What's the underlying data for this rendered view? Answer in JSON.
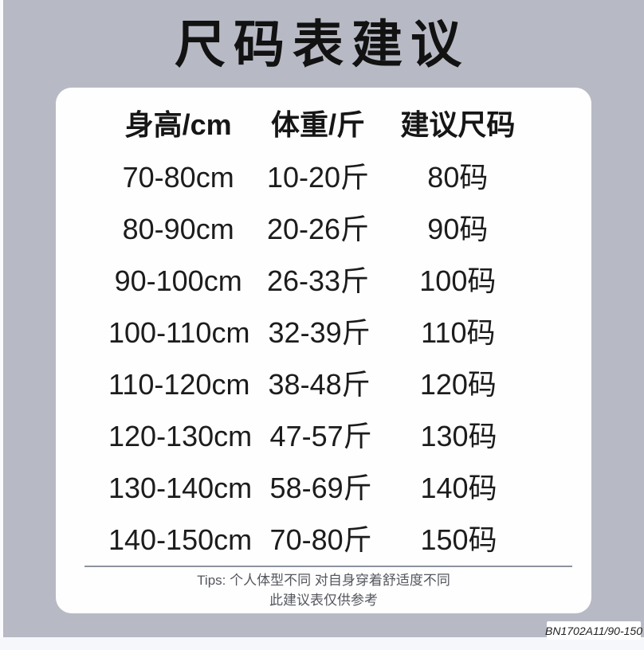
{
  "colors": {
    "background_gray": "#b7bac4",
    "card_white": "#fefefe",
    "page_edge_light": "#f6f7fb",
    "title_text": "#121212",
    "body_text": "#1c1c1c",
    "tips_text": "#54575d",
    "divider": "#8e939d",
    "badge_text": "#222222"
  },
  "chart_data": {
    "type": "table",
    "title": "尺码表建议",
    "columns": [
      "身高/cm",
      "体重/斤",
      "建议尺码"
    ],
    "rows": [
      [
        "70-80cm",
        "10-20斤",
        "80码"
      ],
      [
        "80-90cm",
        "20-26斤",
        "90码"
      ],
      [
        "90-100cm",
        "26-33斤",
        "100码"
      ],
      [
        "100-110cm",
        "32-39斤",
        "110码"
      ],
      [
        "110-120cm",
        "38-48斤",
        "120码"
      ],
      [
        "120-130cm",
        "47-57斤",
        "130码"
      ],
      [
        "130-140cm",
        "58-69斤",
        "140码"
      ],
      [
        "140-150cm",
        "70-80斤",
        "150码"
      ]
    ],
    "layout": {
      "grid": false,
      "header_bold": true,
      "note_below_table": true
    }
  },
  "tips": {
    "line1": "Tips: 个人体型不同 对自身穿着舒适度不同",
    "line2": "此建议表仅供参考"
  },
  "footer": {
    "product_code": "BN1702A11/90-150"
  }
}
